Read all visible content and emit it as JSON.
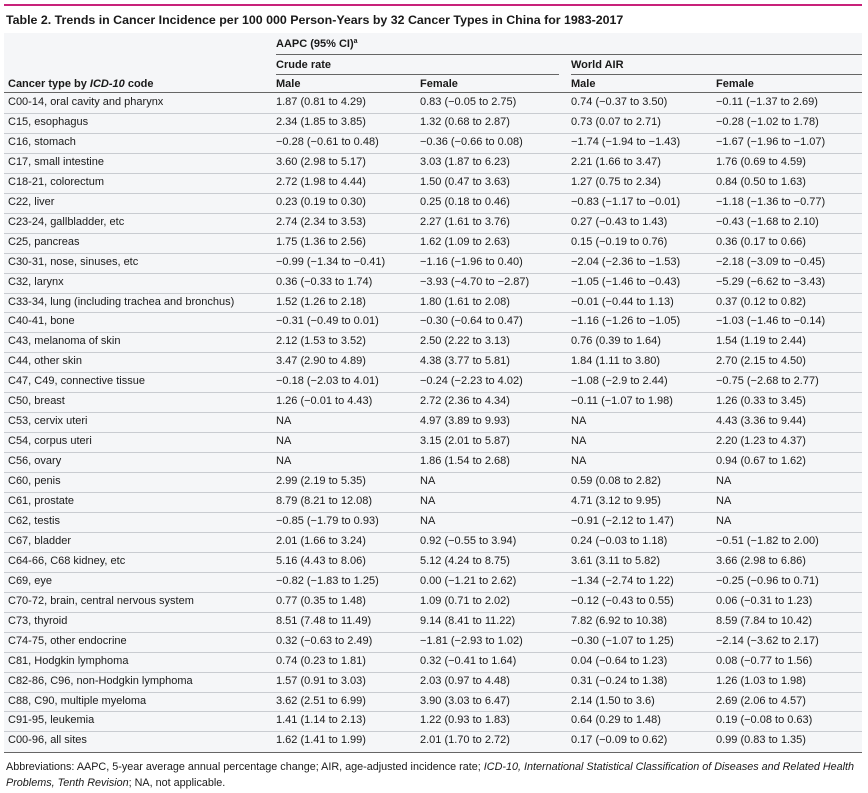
{
  "title": "Table 2. Trends in Cancer Incidence per 100 000 Person-Years by 32 Cancer Types in China for 1983-2017",
  "header": {
    "aapc_label": "AAPC (95% CI)",
    "aapc_sup": "a",
    "crude_label": "Crude rate",
    "world_label": "World AIR",
    "type_label_prefix": "Cancer type by ",
    "type_label_italic": "ICD-10",
    "type_label_suffix": " code",
    "male": "Male",
    "female": "Female"
  },
  "columns": [
    "Cancer type by ICD-10 code",
    "Crude rate Male",
    "Crude rate Female",
    "World AIR Male",
    "World AIR Female"
  ],
  "rows": [
    [
      "C00-14, oral cavity and pharynx",
      "1.87 (0.81 to 4.29)",
      "0.83 (−0.05 to 2.75)",
      "0.74 (−0.37 to 3.50)",
      "−0.11 (−1.37 to 2.69)"
    ],
    [
      "C15, esophagus",
      "2.34 (1.85 to 3.85)",
      "1.32 (0.68 to 2.87)",
      "0.73 (0.07 to 2.71)",
      "−0.28 (−1.02 to 1.78)"
    ],
    [
      "C16, stomach",
      "−0.28 (−0.61 to 0.48)",
      "−0.36 (−0.66 to 0.08)",
      "−1.74 (−1.94 to −1.43)",
      "−1.67 (−1.96 to −1.07)"
    ],
    [
      "C17, small intestine",
      "3.60 (2.98 to 5.17)",
      "3.03 (1.87 to 6.23)",
      "2.21 (1.66 to 3.47)",
      "1.76 (0.69 to 4.59)"
    ],
    [
      "C18-21, colorectum",
      "2.72 (1.98 to 4.44)",
      "1.50 (0.47 to 3.63)",
      "1.27 (0.75 to 2.34)",
      "0.84 (0.50 to 1.63)"
    ],
    [
      "C22, liver",
      "0.23 (0.19 to 0.30)",
      "0.25 (0.18 to 0.46)",
      "−0.83 (−1.17 to −0.01)",
      "−1.18 (−1.36 to −0.77)"
    ],
    [
      "C23-24, gallbladder, etc",
      "2.74 (2.34 to 3.53)",
      "2.27 (1.61 to 3.76)",
      "0.27 (−0.43 to 1.43)",
      "−0.43 (−1.68 to 2.10)"
    ],
    [
      "C25, pancreas",
      "1.75 (1.36 to 2.56)",
      "1.62 (1.09 to 2.63)",
      "0.15 (−0.19 to 0.76)",
      "0.36 (0.17 to 0.66)"
    ],
    [
      "C30-31, nose, sinuses, etc",
      "−0.99 (−1.34 to −0.41)",
      "−1.16 (−1.96 to 0.40)",
      "−2.04 (−2.36 to −1.53)",
      "−2.18 (−3.09 to −0.45)"
    ],
    [
      "C32, larynx",
      "0.36 (−0.33 to 1.74)",
      "−3.93 (−4.70 to −2.87)",
      "−1.05 (−1.46 to −0.43)",
      "−5.29 (−6.62 to −3.43)"
    ],
    [
      "C33-34, lung (including trachea and bronchus)",
      "1.52 (1.26 to 2.18)",
      "1.80 (1.61 to 2.08)",
      "−0.01 (−0.44 to 1.13)",
      "0.37 (0.12 to 0.82)"
    ],
    [
      "C40-41, bone",
      "−0.31 (−0.49 to 0.01)",
      "−0.30 (−0.64 to 0.47)",
      "−1.16 (−1.26 to −1.05)",
      "−1.03 (−1.46 to −0.14)"
    ],
    [
      "C43, melanoma of skin",
      "2.12 (1.53 to 3.52)",
      "2.50 (2.22 to 3.13)",
      "0.76 (0.39 to 1.64)",
      "1.54 (1.19 to 2.44)"
    ],
    [
      "C44, other skin",
      "3.47 (2.90 to 4.89)",
      "4.38 (3.77 to 5.81)",
      "1.84 (1.11 to 3.80)",
      "2.70 (2.15 to 4.50)"
    ],
    [
      "C47, C49, connective tissue",
      "−0.18 (−2.03 to 4.01)",
      "−0.24 (−2.23 to 4.02)",
      "−1.08 (−2.9 to 2.44)",
      "−0.75 (−2.68 to 2.77)"
    ],
    [
      "C50, breast",
      "1.26 (−0.01 to 4.43)",
      "2.72 (2.36 to 4.34)",
      "−0.11 (−1.07 to 1.98)",
      "1.26 (0.33 to 3.45)"
    ],
    [
      "C53, cervix uteri",
      "NA",
      "4.97 (3.89 to 9.93)",
      "NA",
      "4.43 (3.36 to 9.44)"
    ],
    [
      "C54, corpus uteri",
      "NA",
      "3.15 (2.01 to 5.87)",
      "NA",
      "2.20 (1.23 to 4.37)"
    ],
    [
      "C56, ovary",
      "NA",
      "1.86 (1.54 to 2.68)",
      "NA",
      "0.94 (0.67 to 1.62)"
    ],
    [
      "C60, penis",
      "2.99 (2.19 to 5.35)",
      "NA",
      "0.59 (0.08 to 2.82)",
      "NA"
    ],
    [
      "C61, prostate",
      "8.79 (8.21 to 12.08)",
      "NA",
      "4.71 (3.12 to 9.95)",
      "NA"
    ],
    [
      "C62, testis",
      "−0.85 (−1.79 to 0.93)",
      "NA",
      "−0.91 (−2.12 to 1.47)",
      "NA"
    ],
    [
      "C67, bladder",
      "2.01 (1.66 to 3.24)",
      "0.92 (−0.55 to 3.94)",
      "0.24 (−0.03 to 1.18)",
      "−0.51 (−1.82 to 2.00)"
    ],
    [
      "C64-66, C68 kidney, etc",
      "5.16 (4.43 to 8.06)",
      "5.12 (4.24 to 8.75)",
      "3.61 (3.11 to 5.82)",
      "3.66 (2.98 to 6.86)"
    ],
    [
      "C69, eye",
      "−0.82 (−1.83 to 1.25)",
      "0.00 (−1.21 to 2.62)",
      "−1.34 (−2.74 to 1.22)",
      "−0.25 (−0.96 to 0.71)"
    ],
    [
      "C70-72, brain, central nervous system",
      "0.77 (0.35 to 1.48)",
      "1.09 (0.71 to 2.02)",
      "−0.12 (−0.43 to 0.55)",
      "0.06 (−0.31 to 1.23)"
    ],
    [
      "C73, thyroid",
      "8.51 (7.48 to 11.49)",
      "9.14 (8.41 to 11.22)",
      "7.82 (6.92 to 10.38)",
      "8.59 (7.84 to 10.42)"
    ],
    [
      "C74-75, other endocrine",
      "0.32 (−0.63 to 2.49)",
      "−1.81 (−2.93 to 1.02)",
      "−0.30 (−1.07 to 1.25)",
      "−2.14 (−3.62 to 2.17)"
    ],
    [
      "C81, Hodgkin lymphoma",
      "0.74 (0.23 to 1.81)",
      "0.32 (−0.41 to 1.64)",
      "0.04 (−0.64 to 1.23)",
      "0.08 (−0.77 to 1.56)"
    ],
    [
      "C82-86, C96, non-Hodgkin lymphoma",
      "1.57 (0.91 to 3.03)",
      "2.03 (0.97 to 4.48)",
      "0.31 (−0.24 to 1.38)",
      "1.26 (1.03 to 1.98)"
    ],
    [
      "C88, C90, multiple myeloma",
      "3.62 (2.51 to 6.99)",
      "3.90 (3.03 to 6.47)",
      "2.14 (1.50 to 3.6)",
      "2.69 (2.06 to 4.57)"
    ],
    [
      "C91-95, leukemia",
      "1.41 (1.14 to 2.13)",
      "1.22 (0.93 to 1.83)",
      "0.64 (0.29 to 1.48)",
      "0.19 (−0.08 to 0.63)"
    ],
    [
      "C00-96, all sites",
      "1.62 (1.41 to 1.99)",
      "2.01 (1.70 to 2.72)",
      "0.17 (−0.09 to 0.62)",
      "0.99 (0.83 to 1.35)"
    ]
  ],
  "footnote": {
    "p1": "Abbreviations: AAPC, 5-year average annual percentage change; AIR, age-adjusted incidence rate; ",
    "italic": "ICD-10, International Statistical Classification of Diseases and Related Health Problems, Tenth Revision",
    "p2": "; NA, not applicable.",
    "sup_marker": "a"
  },
  "colors": {
    "accent_rule": "#c8227a",
    "table_bg": "#f5f6f8"
  }
}
